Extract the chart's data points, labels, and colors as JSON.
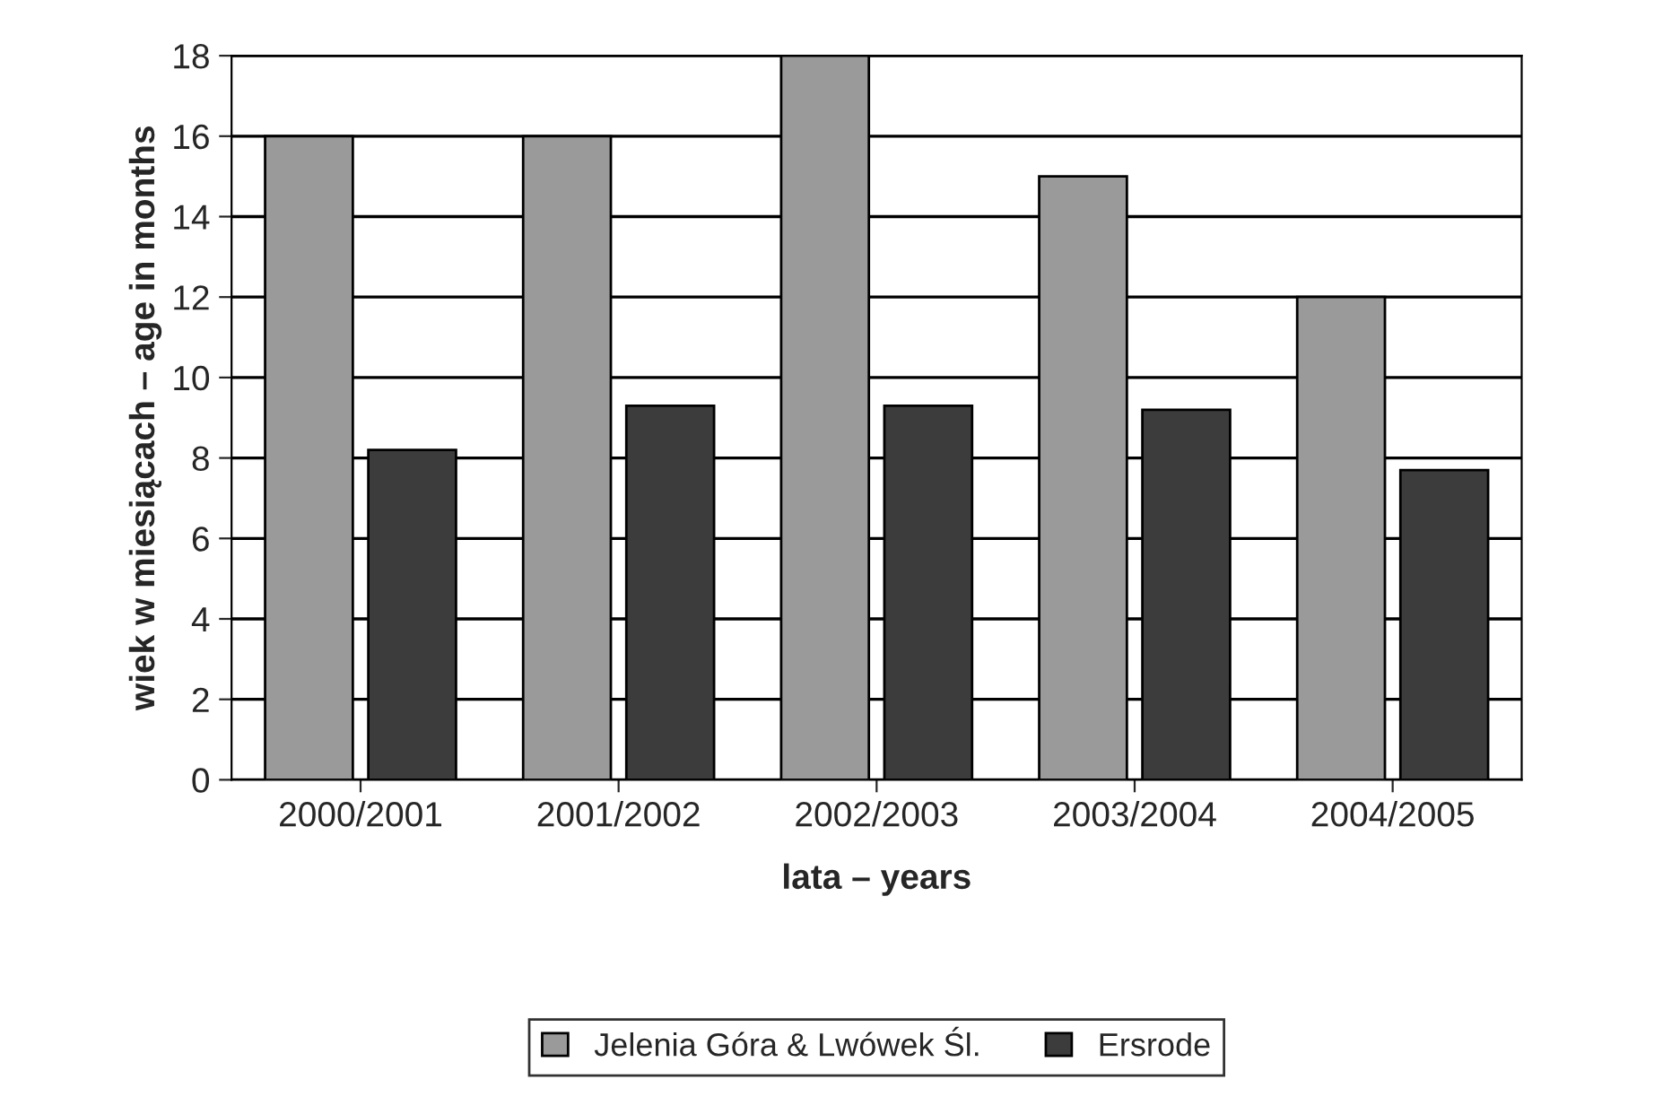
{
  "chart_data": {
    "type": "bar",
    "xlabel": "lata – years",
    "ylabel": "wiek w miesiącach – age in months",
    "categories": [
      "2000/2001",
      "2001/2002",
      "2002/2003",
      "2003/2004",
      "2004/2005"
    ],
    "series": [
      {
        "name": "Jelenia Góra & Lwówek Śl.",
        "color": "#9a9a9a",
        "values": [
          16,
          16,
          18,
          15,
          12
        ]
      },
      {
        "name": "Ersrode",
        "color": "#3c3c3c",
        "values": [
          8.2,
          9.3,
          9.3,
          9.2,
          7.7
        ]
      }
    ],
    "ylim": [
      0,
      18
    ],
    "yticks": [
      0,
      2,
      4,
      6,
      8,
      10,
      12,
      14,
      16,
      18
    ],
    "grid": "y",
    "legend": "bottom"
  }
}
